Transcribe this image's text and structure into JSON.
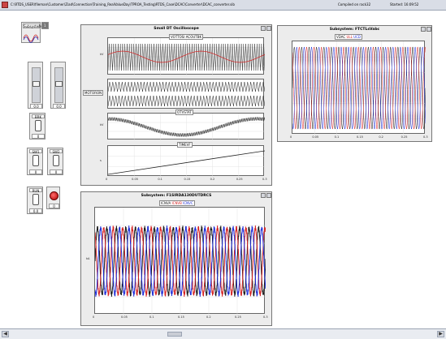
{
  "window": {
    "path": "C:\\RTDS_USER\\fileman\\Customer\\Ziad\\Connection\\Training_RealValueDay\\TPROA_Testing\\RTDS_Case\\DCAC\\Converter\\DCAC_converter.sib",
    "compiled": "Compiled on rack32",
    "started": "Started: 16:09:52"
  },
  "widgets": {
    "subsystem_label": "Subsystem",
    "subsystem_value": "1",
    "slider1_value": "0.0",
    "slider2_value": "0.0",
    "switch1_label": "BRK",
    "switch1_value": "0",
    "switch2_label": "SW1",
    "switch2_value": "0",
    "switch3_label": "SW2",
    "switch3_value": "0",
    "switch4_label": "RUN",
    "switch4_value": "0.0",
    "lamp_value": "0"
  },
  "panels": {
    "oscilloscope": {
      "title": "Small DT Oscilloscope",
      "plot1_legend": "VOTTOSI ACOUTBK",
      "plot2_legend": "MOTORON",
      "plot3_legend": "OTVSTAT",
      "plot4_legend": "TIMEVF",
      "plot1_ylabel": "kV",
      "plot3_ylabel": "kV",
      "plot4_ylabel": "s",
      "xticks": [
        "0",
        "0.05",
        "0.1",
        "0.15",
        "0.2",
        "0.25",
        "0.3"
      ]
    },
    "voltage_panel": {
      "title": "Subsystem: FTCTLsVabc",
      "legend_a": "VDAC",
      "legend_b": "ULL",
      "legend_c": "UCD",
      "xticks": [
        "0",
        "0.05",
        "0.1",
        "0.15",
        "0.2",
        "0.25",
        "0.3"
      ]
    },
    "current_panel": {
      "title": "Subsystem: F1SIRDA130DUTDRCS",
      "legend_a": "ICNVA",
      "legend_b": "ICNVB",
      "legend_c": "ICNVC",
      "ylabel": "kA",
      "xticks": [
        "0",
        "0.05",
        "0.1",
        "0.15",
        "0.2",
        "0.25",
        "0.3"
      ]
    }
  },
  "colors": {
    "phase_a": "#d42020",
    "phase_b": "#1a1a1a",
    "phase_c": "#1b2bd6",
    "window_bg": "#ffffff",
    "panel_bg": "#ececec"
  },
  "icons": {
    "window": "app-icon",
    "panel_buttons": [
      "restore-icon",
      "close-icon"
    ]
  }
}
